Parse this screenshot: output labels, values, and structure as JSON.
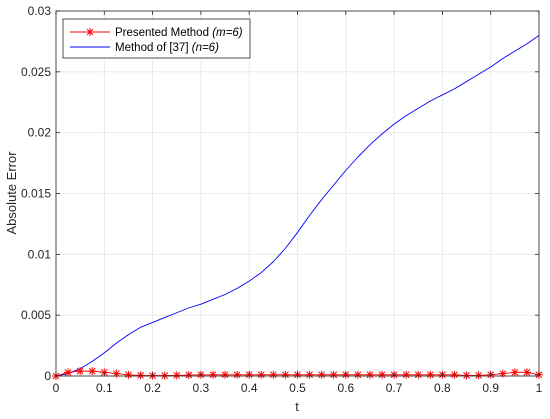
{
  "chart_data": {
    "type": "line",
    "title": "",
    "xlabel": "t",
    "ylabel": "Absolute Error",
    "xlim": [
      0,
      1
    ],
    "ylim": [
      0,
      0.03
    ],
    "x_ticks": [
      "0",
      "0.1",
      "0.2",
      "0.3",
      "0.4",
      "0.5",
      "0.6",
      "0.7",
      "0.8",
      "0.9",
      "1"
    ],
    "x_tick_values": [
      0,
      0.1,
      0.2,
      0.3,
      0.4,
      0.5,
      0.6,
      0.7,
      0.8,
      0.9,
      1
    ],
    "y_ticks": [
      "0",
      "0.005",
      "0.01",
      "0.015",
      "0.02",
      "0.025",
      "0.03"
    ],
    "y_tick_values": [
      0,
      0.005,
      0.01,
      0.015,
      0.02,
      0.025,
      0.03
    ],
    "grid": true,
    "legend_position": "top-left",
    "series": [
      {
        "name": "Presented Method",
        "name_param": "(m=6)",
        "color": "#ff0000",
        "line_style": "solid",
        "marker": "asterisk",
        "x": [
          0,
          0.025,
          0.05,
          0.075,
          0.1,
          0.125,
          0.15,
          0.175,
          0.2,
          0.225,
          0.25,
          0.275,
          0.3,
          0.325,
          0.35,
          0.375,
          0.4,
          0.425,
          0.45,
          0.475,
          0.5,
          0.525,
          0.55,
          0.575,
          0.6,
          0.625,
          0.65,
          0.675,
          0.7,
          0.725,
          0.75,
          0.775,
          0.8,
          0.825,
          0.85,
          0.875,
          0.9,
          0.925,
          0.95,
          0.975,
          1
        ],
        "values": [
          0,
          0.0003,
          0.0004,
          0.0004,
          0.0003,
          0.0002,
          0.0001,
          5e-05,
          3e-05,
          3e-05,
          5e-05,
          8e-05,
          0.0001,
          0.0001,
          0.0001,
          0.0001,
          0.0001,
          0.0001,
          0.0001,
          0.0001,
          0.0001,
          0.0001,
          0.0001,
          0.0001,
          0.0001,
          0.0001,
          0.0001,
          0.0001,
          0.0001,
          0.0001,
          0.0001,
          0.0001,
          0.0001,
          0.0001,
          5e-05,
          5e-05,
          0.0001,
          0.0002,
          0.0003,
          0.0003,
          0.0001
        ]
      },
      {
        "name": "Method of [37]",
        "name_param": "(n=6)",
        "color": "#0000ff",
        "line_style": "solid",
        "marker": "none",
        "x": [
          0,
          0.025,
          0.05,
          0.075,
          0.1,
          0.125,
          0.15,
          0.175,
          0.2,
          0.225,
          0.25,
          0.275,
          0.3,
          0.325,
          0.35,
          0.375,
          0.4,
          0.425,
          0.45,
          0.475,
          0.5,
          0.525,
          0.55,
          0.575,
          0.6,
          0.625,
          0.65,
          0.675,
          0.7,
          0.725,
          0.75,
          0.775,
          0.8,
          0.825,
          0.85,
          0.875,
          0.9,
          0.925,
          0.95,
          0.975,
          1
        ],
        "values": [
          0,
          0.0002,
          0.0006,
          0.0012,
          0.0019,
          0.0027,
          0.0034,
          0.004,
          0.0044,
          0.0048,
          0.0052,
          0.0056,
          0.0059,
          0.0063,
          0.0067,
          0.0072,
          0.0078,
          0.0085,
          0.0094,
          0.0105,
          0.0118,
          0.0132,
          0.0145,
          0.0157,
          0.0169,
          0.018,
          0.019,
          0.0199,
          0.0207,
          0.0214,
          0.022,
          0.0226,
          0.0231,
          0.0236,
          0.0242,
          0.0248,
          0.0254,
          0.0261,
          0.0267,
          0.0273,
          0.028
        ]
      }
    ]
  }
}
